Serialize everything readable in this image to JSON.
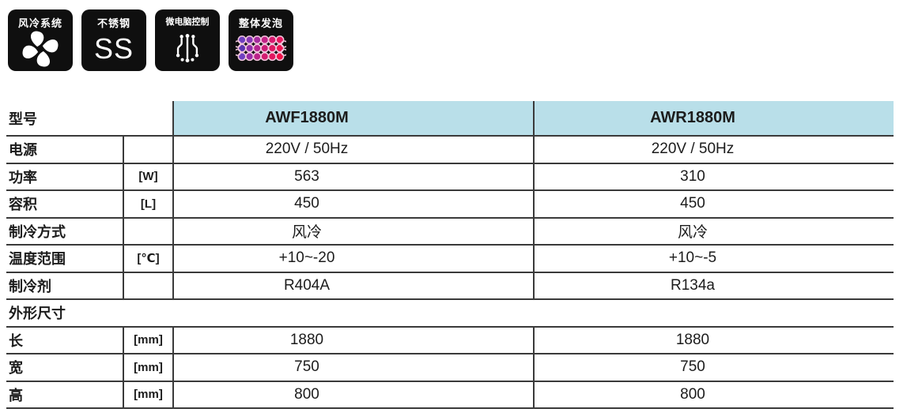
{
  "badges": [
    {
      "name": "air-cooling-system",
      "label": "风冷系统",
      "icon": "fan-icon"
    },
    {
      "name": "stainless-steel",
      "label": "不锈钢",
      "icon": "ss-icon",
      "icon_text": "SS"
    },
    {
      "name": "microcomputer-control",
      "label": "微电脑控制",
      "icon": "circuit-icon"
    },
    {
      "name": "integral-foaming",
      "label": "整体发泡",
      "icon": "foam-bubbles-icon"
    }
  ],
  "colors": {
    "badge_bg": "#0f0f0f",
    "badge_text": "#ffffff",
    "table_header_bg": "#b9dfe9",
    "table_line": "#3a3a3a",
    "text": "#1c1c1c",
    "foam_bubble_outline": "#f0c6dc",
    "foam_bubble_fills": [
      "#7040c0",
      "#8636b4",
      "#a52c9e",
      "#c22387",
      "#d81b70",
      "#e5175e",
      "#5c35b2",
      "#9130aa",
      "#b42690",
      "#cc1e78",
      "#de1964",
      "#ec1552",
      "#7040c0",
      "#9a2ca6",
      "#bb2489",
      "#d21c6f",
      "#e2175f",
      "#f01349"
    ]
  },
  "table": {
    "header_row": {
      "label": "型号",
      "unit": "",
      "values": [
        "AWF1880M",
        "AWR1880M"
      ]
    },
    "rows": [
      {
        "label": "电源",
        "unit": "",
        "values": [
          "220V / 50Hz",
          "220V / 50Hz"
        ]
      },
      {
        "label": "功率",
        "unit": "[W]",
        "values": [
          "563",
          "310"
        ]
      },
      {
        "label": "容积",
        "unit": "[L]",
        "values": [
          "450",
          "450"
        ]
      },
      {
        "label": "制冷方式",
        "unit": "",
        "values": [
          "风冷",
          "风冷"
        ]
      },
      {
        "label": "温度范围",
        "unit": "[℃]",
        "values": [
          "+10~-20",
          "+10~-5"
        ]
      },
      {
        "label": "制冷剂",
        "unit": "",
        "values": [
          "R404A",
          "R134a"
        ]
      },
      {
        "label": "外形尺寸",
        "section": true,
        "values": []
      },
      {
        "label": "长",
        "unit": "[mm]",
        "values": [
          "1880",
          "1880"
        ]
      },
      {
        "label": "宽",
        "unit": "[mm]",
        "values": [
          "750",
          "750"
        ]
      },
      {
        "label": "高",
        "unit": "[mm]",
        "values": [
          "800",
          "800"
        ]
      }
    ]
  }
}
